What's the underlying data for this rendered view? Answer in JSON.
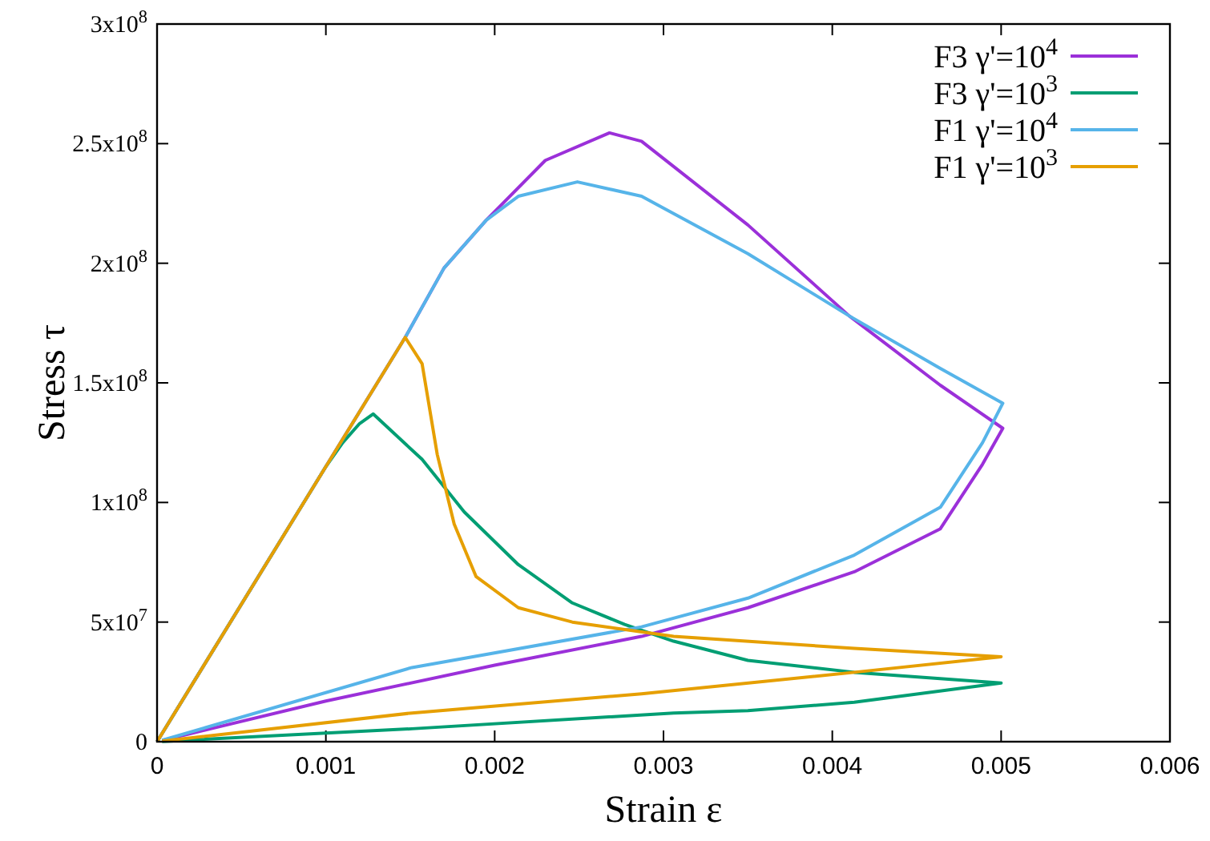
{
  "chart_data": {
    "type": "line",
    "xlabel": "Strain ε",
    "ylabel": "Stress τ",
    "xlim": [
      0,
      0.006
    ],
    "ylim": [
      0,
      300000000
    ],
    "xticks": [
      0,
      0.001,
      0.002,
      0.003,
      0.004,
      0.005,
      0.006
    ],
    "yticks": [
      0,
      {
        "value": 50000000,
        "label": "5x10$^{7}$"
      },
      {
        "value": 100000000,
        "label": "1x10$^{8}$"
      },
      {
        "value": 150000000,
        "label": "1.5x10$^{8}$"
      },
      {
        "value": 200000000,
        "label": "2x10$^{8}$"
      },
      {
        "value": 250000000,
        "label": "2.5x10$^{8}$"
      },
      {
        "value": 300000000,
        "label": "3x10$^{8}$"
      }
    ],
    "grid": false,
    "legend": "top right",
    "marker": "none",
    "line_style": "solid",
    "series": [
      {
        "name": "F3 γ'=10$^{4}$",
        "color": "#9b30d9",
        "x": [
          0,
          0.001,
          0.00147,
          0.0017,
          0.00195,
          0.0023,
          0.00268,
          0.00287,
          0.0035,
          0.0041,
          0.00464,
          0.00501,
          0.00489,
          0.00464,
          0.00413,
          0.0035,
          0.00287,
          0.002,
          0.001,
          3e-05
        ],
        "values": [
          0,
          115000000,
          169000000,
          198000000,
          218000000,
          243000000,
          254500000,
          251000000,
          216000000,
          178000000,
          149000000,
          131000000,
          116000000,
          89000000,
          71000000,
          56000000,
          44000000,
          32000000,
          17000000,
          500000
        ]
      },
      {
        "name": "F3 γ'=10$^{3}$",
        "color": "#009e73",
        "x": [
          0,
          0.001,
          0.0011,
          0.0012,
          0.00128,
          0.00157,
          0.00182,
          0.00214,
          0.00246,
          0.00277,
          0.00306,
          0.0035,
          0.00413,
          0.005,
          0.00413,
          0.0035,
          0.00306,
          0.00151,
          3e-05
        ],
        "values": [
          0,
          115000000,
          125000000,
          133000000,
          137000000,
          118000000,
          96000000,
          74000000,
          58000000,
          49000000,
          42000000,
          34000000,
          29000000,
          24500000,
          16500000,
          13000000,
          12000000,
          5400000,
          100000
        ]
      },
      {
        "name": "F1 γ'=10$^{4}$",
        "color": "#56b4e9",
        "x": [
          0,
          0.001,
          0.00147,
          0.0017,
          0.00195,
          0.00214,
          0.00249,
          0.00287,
          0.0035,
          0.0041,
          0.00464,
          0.00501,
          0.00489,
          0.00464,
          0.00413,
          0.0035,
          0.00287,
          0.00151,
          3e-05
        ],
        "values": [
          0,
          115000000,
          169000000,
          198000000,
          218000000,
          228000000,
          234000000,
          228000000,
          204000000,
          178000000,
          156000000,
          141500000,
          125000000,
          98000000,
          78000000,
          60000000,
          48000000,
          31000000,
          600000
        ]
      },
      {
        "name": "F1 γ'=10$^{3}$",
        "color": "#e69f00",
        "x": [
          0,
          0.001,
          0.00147,
          0.00157,
          0.00166,
          0.00176,
          0.00189,
          0.00214,
          0.00246,
          0.00306,
          0.00413,
          0.005,
          0.00413,
          0.00287,
          0.00151,
          3e-05
        ],
        "values": [
          0,
          115000000,
          169000000,
          158000000,
          120000000,
          91000000,
          69000000,
          56000000,
          50000000,
          44000000,
          39000000,
          35500000,
          29000000,
          20000000,
          12000000,
          250000
        ]
      }
    ]
  }
}
